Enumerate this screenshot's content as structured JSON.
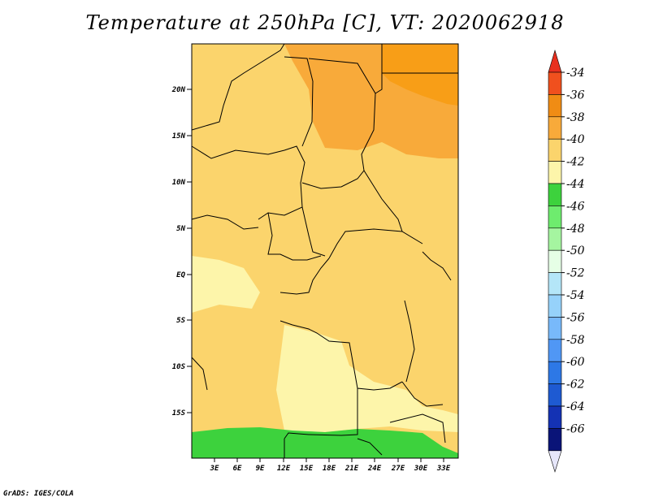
{
  "title": "Temperature at 250hPa [C], VT: 2020062918",
  "credit": "GrADS: IGES/COLA",
  "map": {
    "lat_labels": [
      "20N",
      "15N",
      "10N",
      "5N",
      "EQ",
      "5S",
      "10S",
      "15S"
    ],
    "lon_labels": [
      "3E",
      "6E",
      "9E",
      "12E",
      "15E",
      "18E",
      "21E",
      "24E",
      "27E",
      "30E",
      "33E"
    ]
  },
  "colorbar": {
    "labels": [
      "-34",
      "-36",
      "-38",
      "-40",
      "-42",
      "-44",
      "-46",
      "-48",
      "-50",
      "-52",
      "-54",
      "-56",
      "-58",
      "-60",
      "-62",
      "-64",
      "-66"
    ],
    "colors": [
      "#f0501e",
      "#f08c14",
      "#f8aa3a",
      "#fbd46c",
      "#fdf5aa",
      "#3dd23d",
      "#6eec6e",
      "#a5f5a0",
      "#e6ffe6",
      "#b4e6f8",
      "#96d2fa",
      "#78b9fa",
      "#5097f5",
      "#2d78e6",
      "#1e5ad2",
      "#1432b4",
      "#0a1478"
    ],
    "top_arrow_color": "#e8301e",
    "bottom_arrow_color": "#e6e6fa"
  },
  "fill_colors": {
    "warm_orange": "#f8aa3a",
    "orange": "#f8aa3a",
    "dark_orange": "#f89e17",
    "yellow_orange": "#fbd46c",
    "pale_yellow": "#fdf5aa",
    "green": "#3dd23d"
  }
}
